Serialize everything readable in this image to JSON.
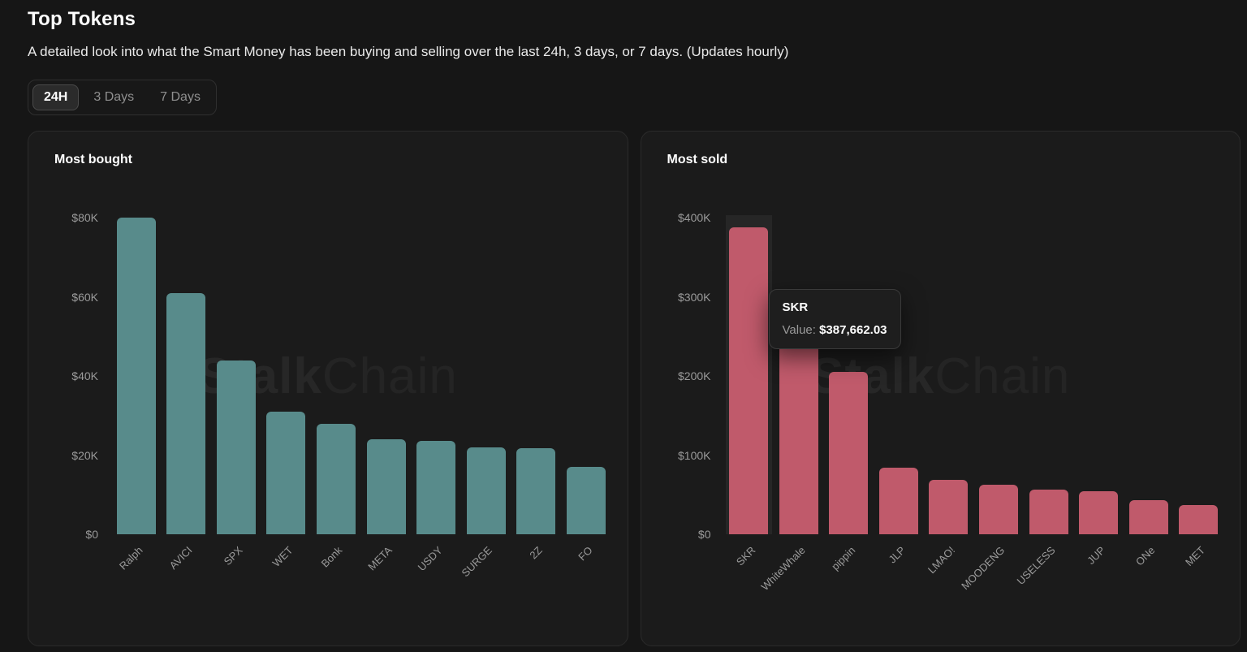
{
  "page": {
    "title": "Top Tokens",
    "subtitle": "A detailed look into what the Smart Money has been buying and selling over the last 24h, 3 days, or 7 days. (Updates hourly)"
  },
  "tabs": [
    {
      "label": "24H",
      "active": true
    },
    {
      "label": "3 Days",
      "active": false
    },
    {
      "label": "7 Days",
      "active": false
    }
  ],
  "watermark": {
    "bold": "Stalk",
    "light": "Chain"
  },
  "tooltip": {
    "title": "SKR",
    "label": "Value:",
    "value": "$387,662.03"
  },
  "colors": {
    "bought_bar": "#588b8b",
    "sold_bar": "#c05a6b",
    "page_background": "#161616",
    "card_background": "#1b1b1b"
  },
  "chart_data": [
    {
      "type": "bar",
      "title": "Most bought",
      "categories": [
        "Ralph",
        "AVICI",
        "SPX",
        "WET",
        "Bonk",
        "META",
        "USDY",
        "SURGE",
        "2Z",
        "FO"
      ],
      "values": [
        80000,
        61000,
        44000,
        31000,
        28000,
        24000,
        23500,
        22000,
        21800,
        17000
      ],
      "ylabel": "",
      "xlabel": "",
      "ylim": [
        0,
        80000
      ],
      "ymax": 80000,
      "ytick_values": [
        0,
        20000,
        40000,
        60000,
        80000
      ],
      "ytick_labels": [
        "$0",
        "$20K",
        "$40K",
        "$60K",
        "$80K"
      ],
      "bar_color": "#588b8b",
      "grid": false,
      "legend": false,
      "highlight_index": -1
    },
    {
      "type": "bar",
      "title": "Most sold",
      "categories": [
        "SKR",
        "WhiteWhale",
        "pippin",
        "JLP",
        "LMAO!",
        "MOODENG",
        "USELESS",
        "JUP",
        "ONe",
        "MET"
      ],
      "values": [
        387662.03,
        250000,
        205000,
        84000,
        69000,
        63000,
        56000,
        54000,
        43000,
        37000
      ],
      "ylabel": "",
      "xlabel": "",
      "ylim": [
        0,
        400000
      ],
      "ymax": 400000,
      "ytick_values": [
        0,
        100000,
        200000,
        300000,
        400000
      ],
      "ytick_labels": [
        "$0",
        "$100K",
        "$200K",
        "$300K",
        "$400K"
      ],
      "bar_color": "#c05a6b",
      "grid": false,
      "legend": false,
      "highlight_index": 0
    }
  ]
}
